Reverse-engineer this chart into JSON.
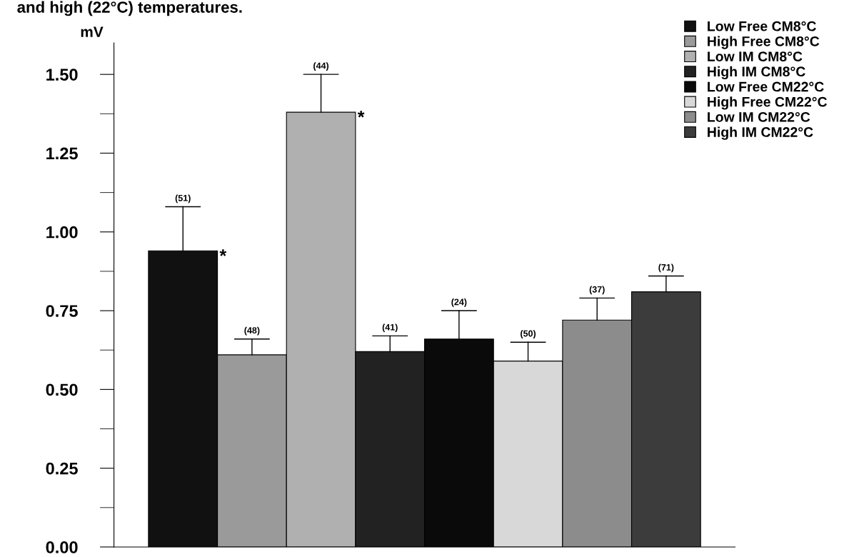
{
  "chart_data": {
    "type": "bar",
    "title": "and high (22°C) temperatures.",
    "ylabel": "mV",
    "categories": [
      null,
      null,
      null,
      null,
      null,
      null,
      null,
      null
    ],
    "series": [
      {
        "name": "Low Free CM8°C",
        "color": "#111111",
        "values": [
          0.94,
          null,
          null,
          null,
          null,
          null,
          null,
          null
        ],
        "errors": [
          [
            0.94,
            1.08
          ],
          null,
          null,
          null,
          null,
          null,
          null,
          null
        ]
      },
      {
        "name": "High Free CM8°C",
        "color": "#9a9a9a",
        "values": [
          null,
          0.61,
          null,
          null,
          null,
          null,
          null,
          null
        ],
        "errors": [
          null,
          [
            0.61,
            0.66
          ],
          null,
          null,
          null,
          null,
          null,
          null
        ]
      },
      {
        "name": "Low IM CM8°C",
        "color": "#b0b0b0",
        "values": [
          null,
          null,
          1.38,
          null,
          null,
          null,
          null,
          null
        ],
        "errors": [
          null,
          null,
          [
            1.38,
            1.5
          ],
          null,
          null,
          null,
          null,
          null
        ]
      },
      {
        "name": "High IM CM8°C",
        "color": "#222222",
        "values": [
          null,
          null,
          null,
          0.62,
          null,
          null,
          null,
          null
        ],
        "errors": [
          null,
          null,
          null,
          [
            0.62,
            0.67
          ],
          null,
          null,
          null,
          null
        ]
      },
      {
        "name": "Low Free CM22°C",
        "color": "#0a0a0a",
        "values": [
          null,
          null,
          null,
          null,
          0.66,
          null,
          null,
          null
        ],
        "errors": [
          null,
          null,
          null,
          null,
          [
            0.66,
            0.75
          ],
          null,
          null,
          null
        ]
      },
      {
        "name": "High Free CM22°C",
        "color": "#d8d8d8",
        "values": [
          null,
          null,
          null,
          null,
          null,
          0.59,
          null,
          null
        ],
        "errors": [
          null,
          null,
          null,
          null,
          null,
          [
            0.59,
            0.65
          ],
          null,
          null
        ]
      },
      {
        "name": "Low IM CM22°C",
        "color": "#8c8c8c",
        "values": [
          null,
          null,
          null,
          null,
          null,
          null,
          0.72,
          null
        ],
        "errors": [
          null,
          null,
          null,
          null,
          null,
          null,
          [
            0.72,
            0.79
          ],
          null
        ]
      },
      {
        "name": "High IM CM22°C",
        "color": "#3c3c3c",
        "values": [
          null,
          null,
          null,
          null,
          null,
          null,
          null,
          0.81
        ],
        "errors": [
          null,
          null,
          null,
          null,
          null,
          null,
          null,
          [
            0.81,
            0.86
          ]
        ]
      }
    ],
    "annotations": [
      "(51)",
      "(48)",
      "(44)",
      "(41)",
      "(24)",
      "(50)",
      "(37)",
      "(71)",
      "*",
      "*"
    ],
    "ylim": [
      0,
      1.6
    ],
    "yticks": [
      {
        "value": 0,
        "label": "0.00"
      },
      {
        "value": 0.25,
        "label": "0.25"
      },
      {
        "value": 0.5,
        "label": "0.50"
      },
      {
        "value": 0.75,
        "label": "0.75"
      },
      {
        "value": 1.0,
        "label": "1.00"
      },
      {
        "value": 1.25,
        "label": "1.25"
      },
      {
        "value": 1.5,
        "label": "1.50"
      }
    ],
    "grid": false,
    "legend": "top right"
  }
}
